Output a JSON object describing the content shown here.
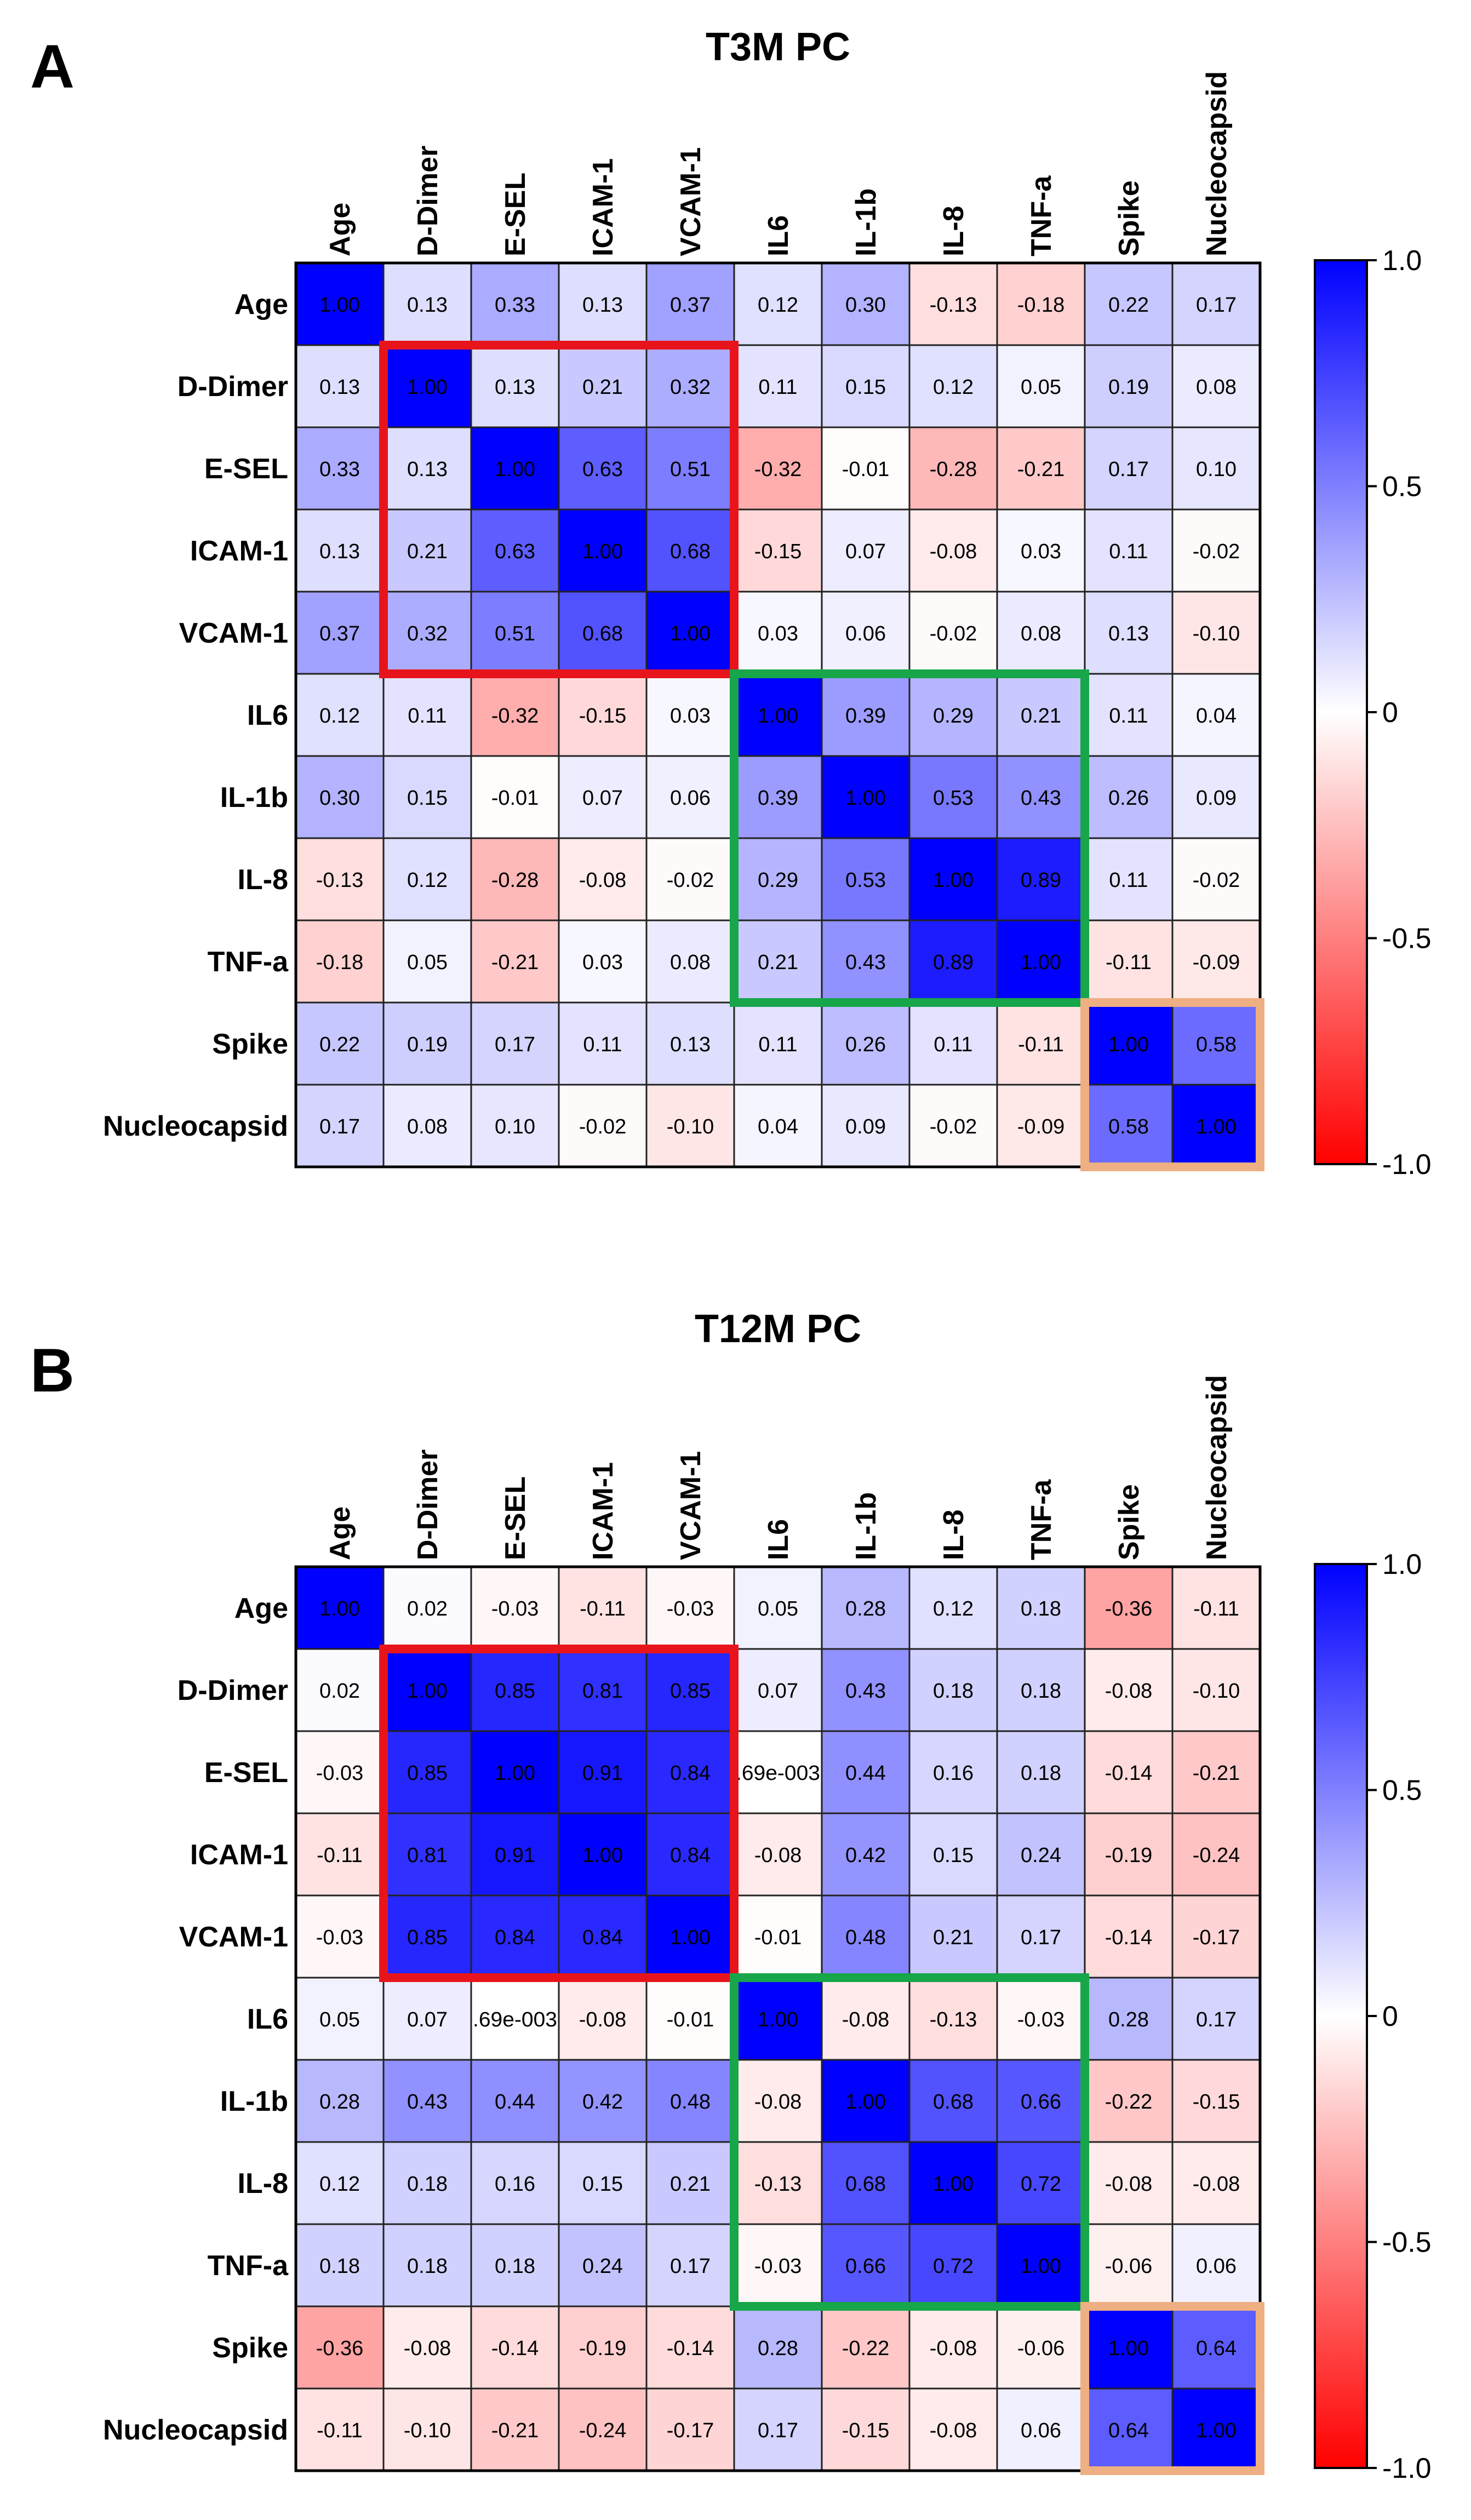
{
  "chart_data": [
    {
      "type": "heatmap",
      "panel_label": "A",
      "title": "T3M PC",
      "variables": [
        "Age",
        "D-Dimer",
        "E-SEL",
        "ICAM-1",
        "VCAM-1",
        "IL6",
        "IL-1b",
        "IL-8",
        "TNF-a",
        "Spike",
        "Nucleocapsid"
      ],
      "values": [
        [
          1.0,
          0.13,
          0.33,
          0.13,
          0.37,
          0.12,
          0.3,
          -0.13,
          -0.18,
          0.22,
          0.17
        ],
        [
          0.13,
          1.0,
          0.13,
          0.21,
          0.32,
          0.11,
          0.15,
          0.12,
          0.05,
          0.19,
          0.08
        ],
        [
          0.33,
          0.13,
          1.0,
          0.63,
          0.51,
          -0.32,
          -0.01,
          -0.28,
          -0.21,
          0.17,
          0.1
        ],
        [
          0.13,
          0.21,
          0.63,
          1.0,
          0.68,
          -0.15,
          0.07,
          -0.08,
          0.03,
          0.11,
          -0.02
        ],
        [
          0.37,
          0.32,
          0.51,
          0.68,
          1.0,
          0.03,
          0.06,
          -0.02,
          0.08,
          0.13,
          -0.1
        ],
        [
          0.12,
          0.11,
          -0.32,
          -0.15,
          0.03,
          1.0,
          0.39,
          0.29,
          0.21,
          0.11,
          0.04
        ],
        [
          0.3,
          0.15,
          -0.01,
          0.07,
          0.06,
          0.39,
          1.0,
          0.53,
          0.43,
          0.26,
          0.09
        ],
        [
          -0.13,
          0.12,
          -0.28,
          -0.08,
          -0.02,
          0.29,
          0.53,
          1.0,
          0.89,
          0.11,
          -0.02
        ],
        [
          -0.18,
          0.05,
          -0.21,
          0.03,
          0.08,
          0.21,
          0.43,
          0.89,
          1.0,
          -0.11,
          -0.09
        ],
        [
          0.22,
          0.19,
          0.17,
          0.11,
          0.13,
          0.11,
          0.26,
          0.11,
          -0.11,
          1.0,
          0.58
        ],
        [
          0.17,
          0.08,
          0.1,
          -0.02,
          -0.1,
          0.04,
          0.09,
          -0.02,
          -0.09,
          0.58,
          1.0
        ]
      ],
      "labels": [
        [
          "1.00",
          "0.13",
          "0.33",
          "0.13",
          "0.37",
          "0.12",
          "0.30",
          "-0.13",
          "-0.18",
          "0.22",
          "0.17"
        ],
        [
          "0.13",
          "1.00",
          "0.13",
          "0.21",
          "0.32",
          "0.11",
          "0.15",
          "0.12",
          "0.05",
          "0.19",
          "0.08"
        ],
        [
          "0.33",
          "0.13",
          "1.00",
          "0.63",
          "0.51",
          "-0.32",
          "-0.01",
          "-0.28",
          "-0.21",
          "0.17",
          "0.10"
        ],
        [
          "0.13",
          "0.21",
          "0.63",
          "1.00",
          "0.68",
          "-0.15",
          "0.07",
          "-0.08",
          "0.03",
          "0.11",
          "-0.02"
        ],
        [
          "0.37",
          "0.32",
          "0.51",
          "0.68",
          "1.00",
          "0.03",
          "0.06",
          "-0.02",
          "0.08",
          "0.13",
          "-0.10"
        ],
        [
          "0.12",
          "0.11",
          "-0.32",
          "-0.15",
          "0.03",
          "1.00",
          "0.39",
          "0.29",
          "0.21",
          "0.11",
          "0.04"
        ],
        [
          "0.30",
          "0.15",
          "-0.01",
          "0.07",
          "0.06",
          "0.39",
          "1.00",
          "0.53",
          "0.43",
          "0.26",
          "0.09"
        ],
        [
          "-0.13",
          "0.12",
          "-0.28",
          "-0.08",
          "-0.02",
          "0.29",
          "0.53",
          "1.00",
          "0.89",
          "0.11",
          "-0.02"
        ],
        [
          "-0.18",
          "0.05",
          "-0.21",
          "0.03",
          "0.08",
          "0.21",
          "0.43",
          "0.89",
          "1.00",
          "-0.11",
          "-0.09"
        ],
        [
          "0.22",
          "0.19",
          "0.17",
          "0.11",
          "0.13",
          "0.11",
          "0.26",
          "0.11",
          "-0.11",
          "1.00",
          "0.58"
        ],
        [
          "0.17",
          "0.08",
          "0.10",
          "-0.02",
          "-0.10",
          "0.04",
          "0.09",
          "-0.02",
          "-0.09",
          "0.58",
          "1.00"
        ]
      ],
      "highlight_boxes": [
        {
          "from": 1,
          "to": 4,
          "color": "#e8141b"
        },
        {
          "from": 5,
          "to": 8,
          "color": "#17a64a"
        },
        {
          "from": 9,
          "to": 10,
          "color": "#eeaf82"
        }
      ],
      "colorbar": {
        "min": -1.0,
        "max": 1.0,
        "ticks": [
          "1.0",
          "0.5",
          "0",
          "-0.5",
          "-1.0"
        ],
        "tick_values": [
          1.0,
          0.5,
          0,
          -0.5,
          -1.0
        ]
      }
    },
    {
      "type": "heatmap",
      "panel_label": "B",
      "title": "T12M PC",
      "variables": [
        "Age",
        "D-Dimer",
        "E-SEL",
        "ICAM-1",
        "VCAM-1",
        "IL6",
        "IL-1b",
        "IL-8",
        "TNF-a",
        "Spike",
        "Nucleocapsid"
      ],
      "values": [
        [
          1.0,
          0.02,
          -0.03,
          -0.11,
          -0.03,
          0.05,
          0.28,
          0.12,
          0.18,
          -0.36,
          -0.11
        ],
        [
          0.02,
          1.0,
          0.85,
          0.81,
          0.85,
          0.07,
          0.43,
          0.18,
          0.18,
          -0.08,
          -0.1
        ],
        [
          -0.03,
          0.85,
          1.0,
          0.91,
          0.84,
          0.0,
          0.44,
          0.16,
          0.18,
          -0.14,
          -0.21
        ],
        [
          -0.11,
          0.81,
          0.91,
          1.0,
          0.84,
          -0.08,
          0.42,
          0.15,
          0.24,
          -0.19,
          -0.24
        ],
        [
          -0.03,
          0.85,
          0.84,
          0.84,
          1.0,
          -0.01,
          0.48,
          0.21,
          0.17,
          -0.14,
          -0.17
        ],
        [
          0.05,
          0.07,
          0.0,
          -0.08,
          -0.01,
          1.0,
          -0.08,
          -0.13,
          -0.03,
          0.28,
          0.17
        ],
        [
          0.28,
          0.43,
          0.44,
          0.42,
          0.48,
          -0.08,
          1.0,
          0.68,
          0.66,
          -0.22,
          -0.15
        ],
        [
          0.12,
          0.18,
          0.16,
          0.15,
          0.21,
          -0.13,
          0.68,
          1.0,
          0.72,
          -0.08,
          -0.08
        ],
        [
          0.18,
          0.18,
          0.18,
          0.24,
          0.17,
          -0.03,
          0.66,
          0.72,
          1.0,
          -0.06,
          0.06
        ],
        [
          -0.36,
          -0.08,
          -0.14,
          -0.19,
          -0.14,
          0.28,
          -0.22,
          -0.08,
          -0.06,
          1.0,
          0.64
        ],
        [
          -0.11,
          -0.1,
          -0.21,
          -0.24,
          -0.17,
          0.17,
          -0.15,
          -0.08,
          0.06,
          0.64,
          1.0
        ]
      ],
      "labels": [
        [
          "1.00",
          "0.02",
          "-0.03",
          "-0.11",
          "-0.03",
          "0.05",
          "0.28",
          "0.12",
          "0.18",
          "-0.36",
          "-0.11"
        ],
        [
          "0.02",
          "1.00",
          "0.85",
          "0.81",
          "0.85",
          "0.07",
          "0.43",
          "0.18",
          "0.18",
          "-0.08",
          "-0.10"
        ],
        [
          "-0.03",
          "0.85",
          "1.00",
          "0.91",
          "0.84",
          ".69e-003",
          "0.44",
          "0.16",
          "0.18",
          "-0.14",
          "-0.21"
        ],
        [
          "-0.11",
          "0.81",
          "0.91",
          "1.00",
          "0.84",
          "-0.08",
          "0.42",
          "0.15",
          "0.24",
          "-0.19",
          "-0.24"
        ],
        [
          "-0.03",
          "0.85",
          "0.84",
          "0.84",
          "1.00",
          "-0.01",
          "0.48",
          "0.21",
          "0.17",
          "-0.14",
          "-0.17"
        ],
        [
          "0.05",
          "0.07",
          ".69e-003",
          "-0.08",
          "-0.01",
          "1.00",
          "-0.08",
          "-0.13",
          "-0.03",
          "0.28",
          "0.17"
        ],
        [
          "0.28",
          "0.43",
          "0.44",
          "0.42",
          "0.48",
          "-0.08",
          "1.00",
          "0.68",
          "0.66",
          "-0.22",
          "-0.15"
        ],
        [
          "0.12",
          "0.18",
          "0.16",
          "0.15",
          "0.21",
          "-0.13",
          "0.68",
          "1.00",
          "0.72",
          "-0.08",
          "-0.08"
        ],
        [
          "0.18",
          "0.18",
          "0.18",
          "0.24",
          "0.17",
          "-0.03",
          "0.66",
          "0.72",
          "1.00",
          "-0.06",
          "0.06"
        ],
        [
          "-0.36",
          "-0.08",
          "-0.14",
          "-0.19",
          "-0.14",
          "0.28",
          "-0.22",
          "-0.08",
          "-0.06",
          "1.00",
          "0.64"
        ],
        [
          "-0.11",
          "-0.10",
          "-0.21",
          "-0.24",
          "-0.17",
          "0.17",
          "-0.15",
          "-0.08",
          "0.06",
          "0.64",
          "1.00"
        ]
      ],
      "highlight_boxes": [
        {
          "from": 1,
          "to": 4,
          "color": "#e8141b"
        },
        {
          "from": 5,
          "to": 8,
          "color": "#17a64a"
        },
        {
          "from": 9,
          "to": 10,
          "color": "#eeaf82"
        }
      ],
      "colorbar": {
        "min": -1.0,
        "max": 1.0,
        "ticks": [
          "1.0",
          "0.5",
          "0",
          "-0.5",
          "-1.0"
        ],
        "tick_values": [
          1.0,
          0.5,
          0,
          -0.5,
          -1.0
        ]
      }
    }
  ]
}
